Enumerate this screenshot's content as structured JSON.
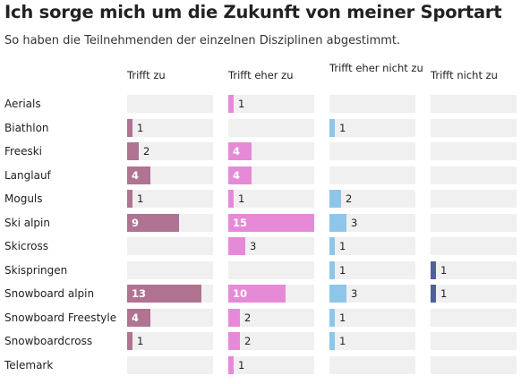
{
  "title": "Ich sorge mich um die Zukunft von meiner Sportart",
  "subtitle": "So haben die Teilnehmenden der einzelnen Disziplinen abgestimmt.",
  "chart_data": {
    "type": "bar",
    "title": "Ich sorge mich um die Zukunft von meiner Sportart",
    "subtitle": "So haben die Teilnehmenden der einzelnen Disziplinen abgestimmt.",
    "categories": [
      "Aerials",
      "Biathlon",
      "Freeski",
      "Langlauf",
      "Moguls",
      "Ski alpin",
      "Skicross",
      "Skispringen",
      "Snowboard alpin",
      "Snowboard Freestyle",
      "Snowboardcross",
      "Telemark"
    ],
    "series": [
      {
        "name": "Trifft zu",
        "color": "#b07391",
        "values": [
          0,
          1,
          2,
          4,
          1,
          9,
          0,
          0,
          13,
          4,
          1,
          0
        ]
      },
      {
        "name": "Trifft eher zu",
        "color": "#e68ad8",
        "values": [
          1,
          0,
          4,
          4,
          1,
          15,
          3,
          0,
          10,
          2,
          2,
          1
        ]
      },
      {
        "name": "Trifft eher nicht zu",
        "color": "#8ec6ea",
        "values": [
          0,
          1,
          0,
          0,
          2,
          3,
          1,
          1,
          3,
          1,
          1,
          0
        ]
      },
      {
        "name": "Trifft nicht zu",
        "color": "#4f5f98",
        "values": [
          0,
          0,
          0,
          0,
          0,
          0,
          0,
          1,
          1,
          0,
          0,
          0
        ]
      }
    ],
    "xlim": [
      0,
      15
    ],
    "grid": false,
    "legend": "none"
  }
}
